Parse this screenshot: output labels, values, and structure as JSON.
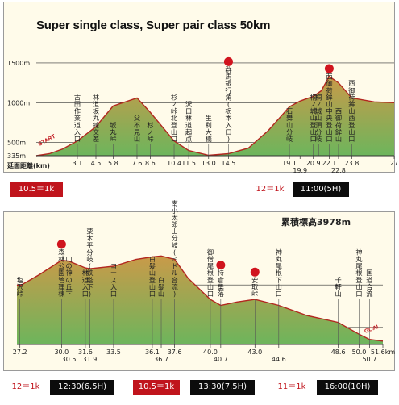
{
  "top": {
    "title": "Super single class, Super pair class 50km",
    "axis_label": "延面距離(km)",
    "start_label": "START",
    "elev_labels": [
      "1500m",
      "1000m",
      "500m",
      "335m"
    ],
    "ticks": [
      "3.1",
      "4.5",
      "5.8",
      "7.6",
      "8.6",
      "10.4",
      "11.5",
      "13.0",
      "14.5",
      "19.1",
      "19.9",
      "20.9",
      "22.1",
      "22.8",
      "23.8",
      "27"
    ],
    "points": [
      {
        "label": "古田作業道入口",
        "km": 3.1
      },
      {
        "label": "林道坂丸線交差",
        "km": 4.5
      },
      {
        "label": "坂丸峠",
        "km": 5.8
      },
      {
        "label": "父不見山",
        "km": 7.6
      },
      {
        "label": "杉ノ峠",
        "km": 8.6
      },
      {
        "label": "杉ノ峠北登山口",
        "km": 10.4
      },
      {
        "label": "沢口林道起点",
        "km": 11.5
      },
      {
        "label": "生利大橋",
        "km": 13.0
      },
      {
        "label": "群馬銀行角(栃本入口)",
        "km": 14.5
      },
      {
        "label": "石舞山分岐",
        "km": 19.1
      },
      {
        "label": "桐ノ城山登山口",
        "km": 20.9
      },
      {
        "label": "桐ノ城山頂分岐",
        "km": 21.3
      },
      {
        "label": "西御荷鉾山中央登山口",
        "km": 22.1
      },
      {
        "label": "西御荷鉾山",
        "km": 22.8
      },
      {
        "label": "西御荷鉾山西登山口",
        "km": 23.8
      }
    ],
    "checkpoints": [
      "群馬銀行角(栃本入口)",
      "西御荷鉾山中央登山口"
    ],
    "profile": {
      "km": [
        0,
        1,
        2,
        3.1,
        4.5,
        5.8,
        7.6,
        8.6,
        10.4,
        11.5,
        13.0,
        14.5,
        16.0,
        17.5,
        19.1,
        19.9,
        20.9,
        21.5,
        22.1,
        22.8,
        23.8,
        25.5,
        27
      ],
      "elev": [
        335,
        360,
        420,
        520,
        700,
        960,
        1060,
        880,
        520,
        400,
        340,
        360,
        430,
        650,
        950,
        1020,
        1080,
        1150,
        1330,
        1250,
        1060,
        1010,
        1000
      ]
    },
    "legend": {
      "scale_a": "10.5＝1k",
      "scale_b": "12＝1k",
      "time_b": "11:00(5H)"
    }
  },
  "bottom": {
    "title": "累積標高3978m",
    "goal_label": "GOAL",
    "ticks": [
      "27.2",
      "30.0",
      "30.5",
      "31.6",
      "31.9",
      "33.5",
      "36.1",
      "36.7",
      "37.6",
      "40.0",
      "40.7",
      "43.0",
      "44.6",
      "48.6",
      "50.0",
      "50.7",
      "51.6km"
    ],
    "points": [
      {
        "label": "塩沢峠",
        "km": 27.2
      },
      {
        "label": "森林公園管理棟",
        "km": 30.0
      },
      {
        "label": "山の神の丘下",
        "km": 30.5
      },
      {
        "label": "林道入口",
        "km": 31.6
      },
      {
        "label": "栗木平分岐(鉄塔下)",
        "km": 31.9
      },
      {
        "label": "コース入口",
        "km": 33.5
      },
      {
        "label": "白髪山登山口",
        "km": 36.1
      },
      {
        "label": "白髪山",
        "km": 36.7
      },
      {
        "label": "南小太郎山分岐(ミドル合流)",
        "km": 37.6
      },
      {
        "label": "御僧尾根登山口",
        "km": 40.0
      },
      {
        "label": "持倉集落",
        "km": 40.7
      },
      {
        "label": "安取峠",
        "km": 43.0
      },
      {
        "label": "神丸尾根下山口",
        "km": 44.6
      },
      {
        "label": "千軒山",
        "km": 48.6
      },
      {
        "label": "神丸尾根登山口",
        "km": 50.0
      },
      {
        "label": "国道合流",
        "km": 50.7
      }
    ],
    "checkpoints": [
      "森林公園管理棟",
      "持倉集落",
      "安取峠"
    ],
    "profile": {
      "km": [
        27,
        27.2,
        28.5,
        30.0,
        30.5,
        31.6,
        31.9,
        33.5,
        35.0,
        36.1,
        36.7,
        37.6,
        38.5,
        40.0,
        40.7,
        41.8,
        43.0,
        44.6,
        46.5,
        48.6,
        50.0,
        50.7,
        51.6
      ],
      "elev": [
        1000,
        990,
        1120,
        1290,
        1280,
        1200,
        1190,
        1220,
        1300,
        1330,
        1340,
        1300,
        1080,
        830,
        760,
        800,
        830,
        760,
        640,
        560,
        420,
        360,
        340
      ]
    },
    "legend": {
      "scale_1": "12＝1k",
      "time_1": "12:30(6.5H)",
      "scale_2": "10.5＝1k",
      "time_2": "13:30(7.5H)",
      "scale_3": "11＝1k",
      "time_3": "16:00(10H)"
    }
  },
  "colors": {
    "profile_fill_top": "#c99a49",
    "profile_fill_bottom": "#6db55c",
    "profile_line": "#b3271f",
    "checkpoint_red": "#d0141e",
    "badge_red": "#c0141c",
    "badge_black": "#0c0c0c",
    "panel_bg": "#fffbea"
  }
}
